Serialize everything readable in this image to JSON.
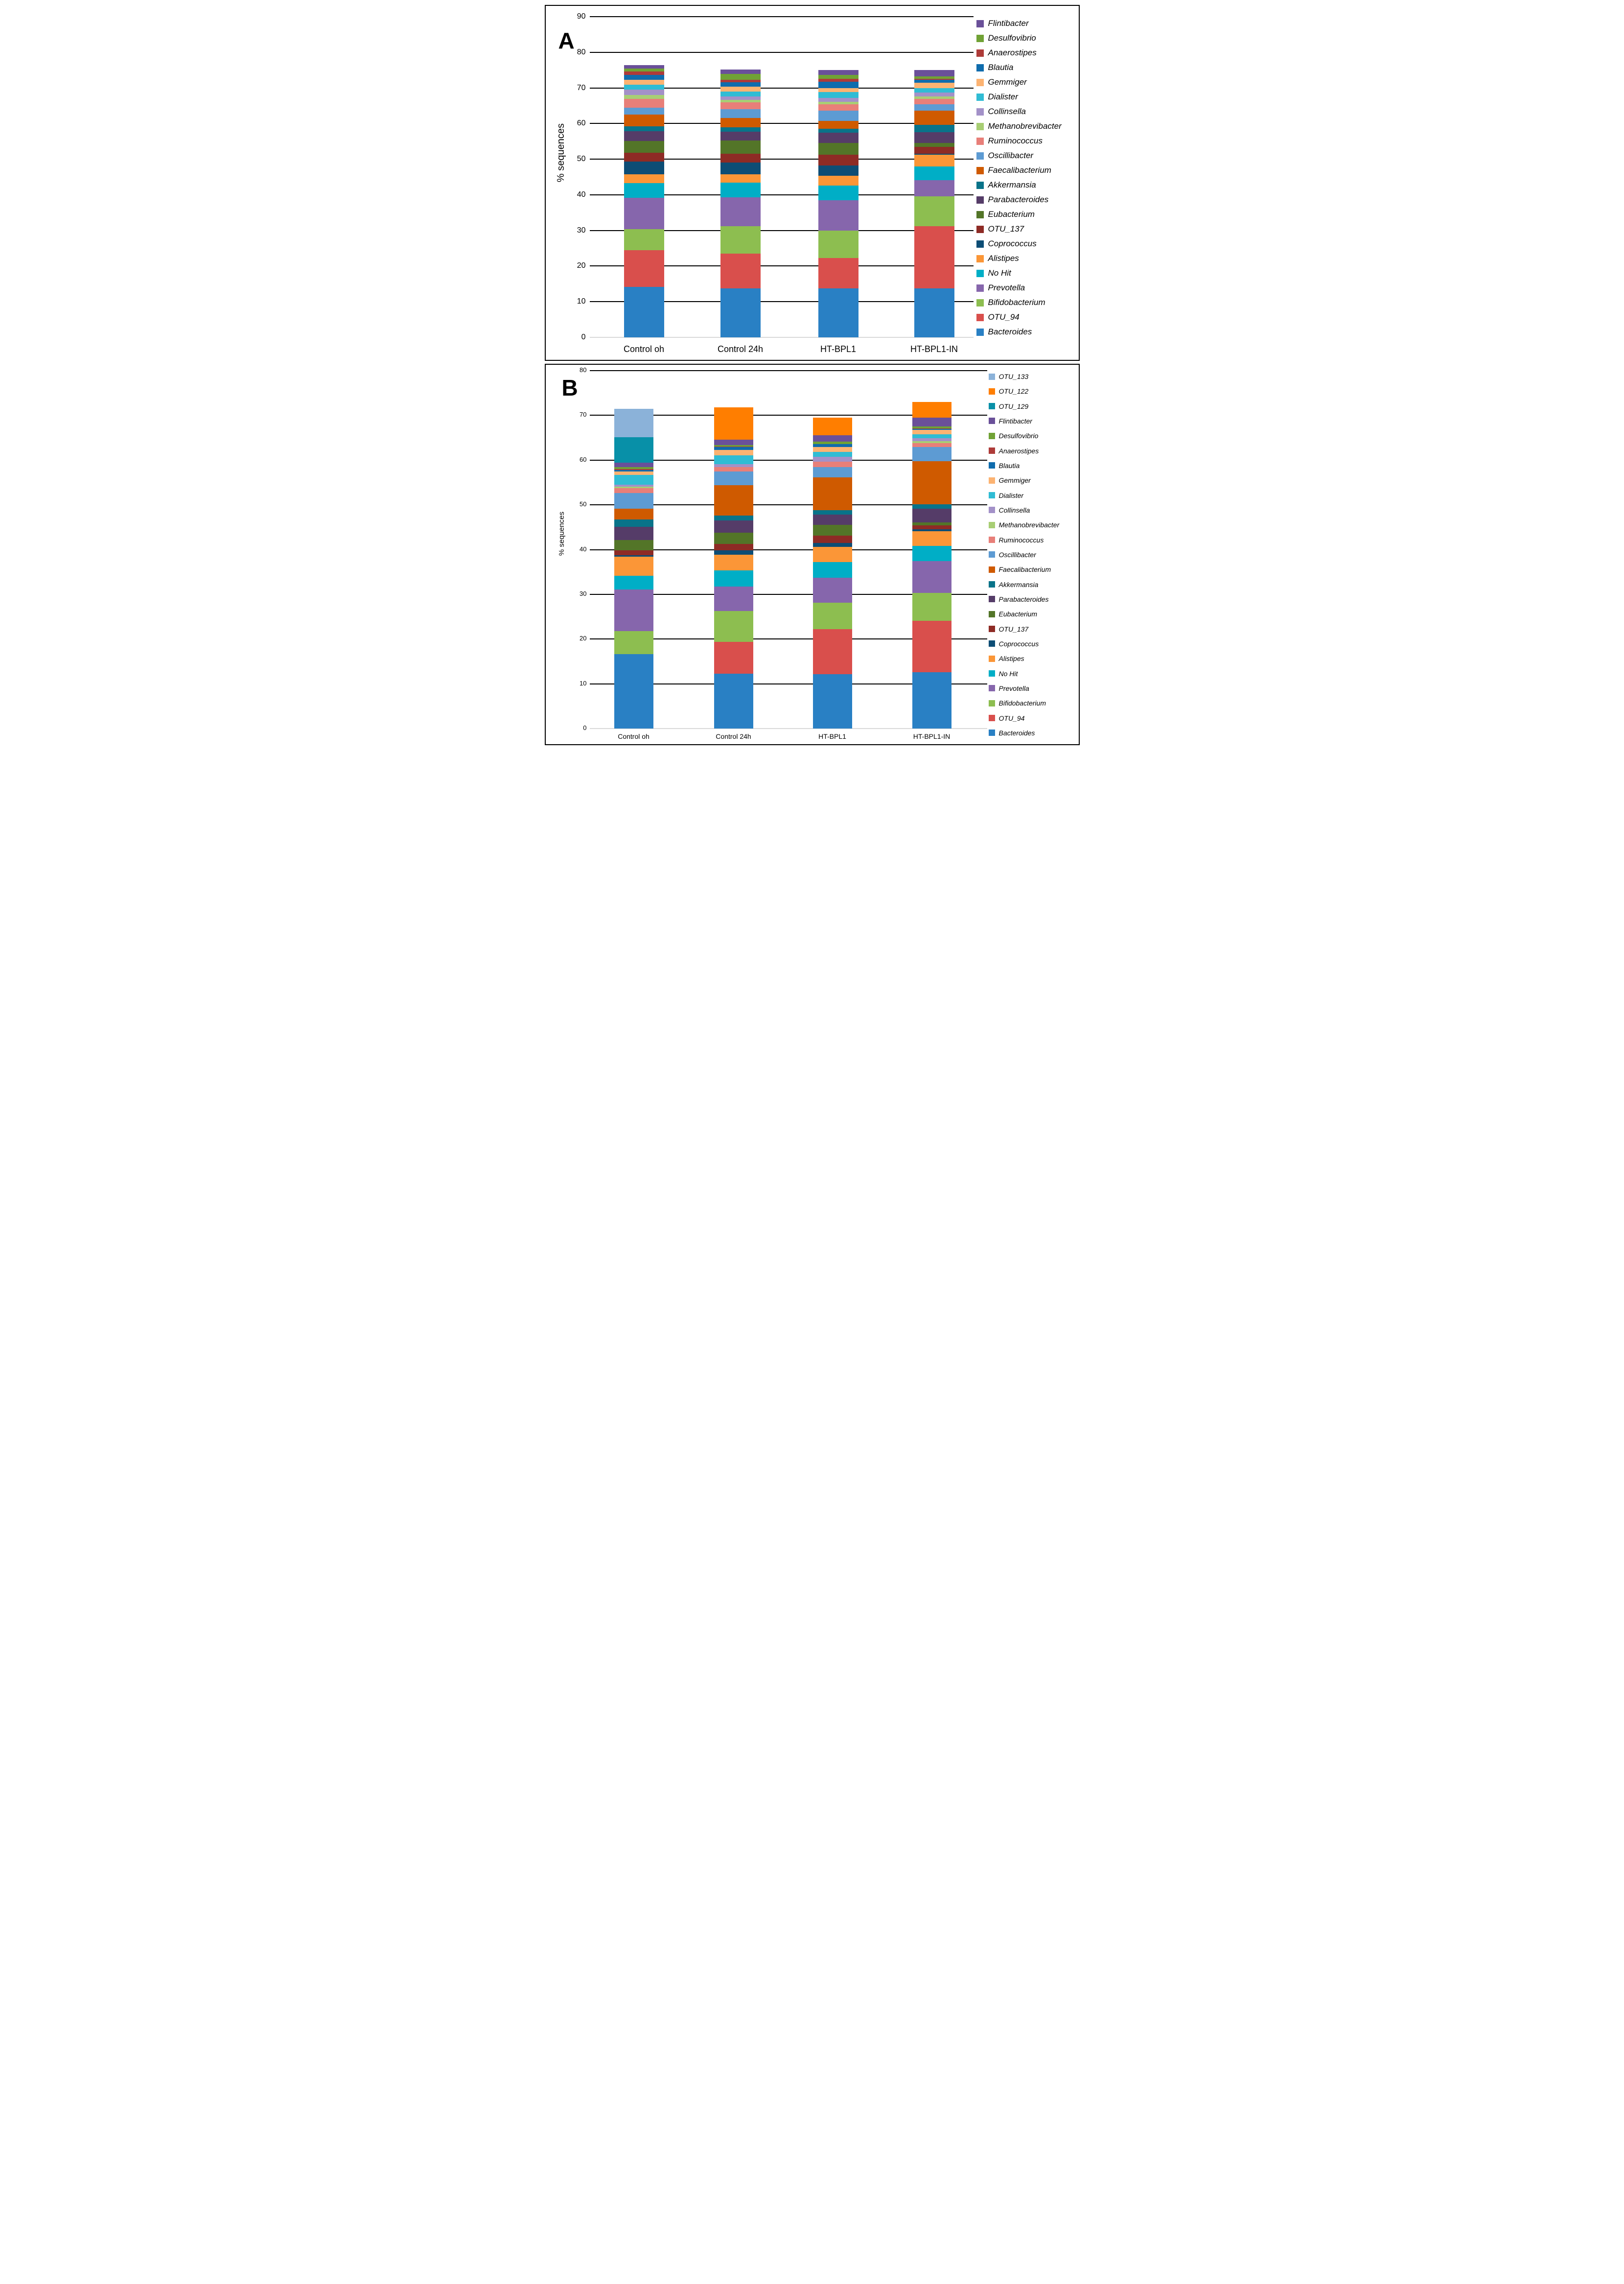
{
  "chart_data": [
    {
      "id": "A",
      "type": "bar",
      "subtype": "stacked-vertical",
      "panel_label": "A",
      "ylabel": "% sequences",
      "xlabel": "",
      "ylim": [
        0,
        90
      ],
      "ytick_step": 10,
      "grid": true,
      "legend_position": "right",
      "legend_order": "top-to-bottom-reverse-of-stack",
      "categories": [
        "Control oh",
        "Control 24h",
        "HT-BPL1",
        "HT-BPL1-IN"
      ],
      "series": [
        {
          "name": "Bacteroides",
          "color": "#2980C4",
          "values": [
            14.2,
            13.7,
            13.7,
            13.7
          ]
        },
        {
          "name": "OTU_94",
          "color": "#D94F4C",
          "values": [
            10.2,
            9.8,
            8.5,
            17.5
          ]
        },
        {
          "name": "Bifidobacterium",
          "color": "#8DBE50",
          "values": [
            6.0,
            7.7,
            7.8,
            8.4
          ]
        },
        {
          "name": "Prevotella",
          "color": "#8666AC",
          "values": [
            8.8,
            8.1,
            8.5,
            4.5
          ]
        },
        {
          "name": "No Hit",
          "color": "#00AEC6",
          "values": [
            4.1,
            4.1,
            4.1,
            3.8
          ]
        },
        {
          "name": "Alistipes",
          "color": "#FB9637",
          "values": [
            2.5,
            2.3,
            2.7,
            3.4
          ]
        },
        {
          "name": "Coprococcus",
          "color": "#0D4D75",
          "values": [
            3.5,
            3.3,
            3.0,
            0.3
          ]
        },
        {
          "name": "OTU_137",
          "color": "#8E2B25",
          "values": [
            2.5,
            2.5,
            3.0,
            1.9
          ]
        },
        {
          "name": "Eubacterium",
          "color": "#537528",
          "values": [
            3.3,
            3.7,
            3.3,
            1.1
          ]
        },
        {
          "name": "Parabacteroides",
          "color": "#553C68",
          "values": [
            2.7,
            2.5,
            2.8,
            3.0
          ]
        },
        {
          "name": "Akkermansia",
          "color": "#097389",
          "values": [
            1.5,
            1.3,
            1.1,
            2.1
          ]
        },
        {
          "name": "Faecalibacterium",
          "color": "#CF5A00",
          "values": [
            3.2,
            2.5,
            2.3,
            3.9
          ]
        },
        {
          "name": "Oscillibacter",
          "color": "#5D9BD3",
          "values": [
            1.9,
            2.5,
            2.8,
            1.8
          ]
        },
        {
          "name": "Ruminococcus",
          "color": "#E87F79",
          "values": [
            2.5,
            1.9,
            1.8,
            1.5
          ]
        },
        {
          "name": "Methanobrevibacter",
          "color": "#A8CE74",
          "values": [
            1.1,
            0.8,
            0.7,
            0.7
          ]
        },
        {
          "name": "Collinsella",
          "color": "#A391C8",
          "values": [
            1.5,
            0.9,
            1.1,
            1.1
          ]
        },
        {
          "name": "Dialister",
          "color": "#30BCD4",
          "values": [
            1.4,
            1.4,
            1.7,
            1.3
          ]
        },
        {
          "name": "Gemmiger",
          "color": "#FCB372",
          "values": [
            1.4,
            1.3,
            1.1,
            1.5
          ]
        },
        {
          "name": "Blautia",
          "color": "#0F6CAD",
          "values": [
            1.3,
            1.3,
            1.7,
            0.8
          ]
        },
        {
          "name": "Anaerostipes",
          "color": "#AE3B39",
          "values": [
            1.0,
            0.7,
            0.9,
            0.3
          ]
        },
        {
          "name": "Desulfovibrio",
          "color": "#70A235",
          "values": [
            0.8,
            1.7,
            1.1,
            0.6
          ]
        },
        {
          "name": "Flintibacter",
          "color": "#6A5099",
          "values": [
            1.0,
            1.2,
            1.4,
            1.8
          ]
        }
      ]
    },
    {
      "id": "B",
      "type": "bar",
      "subtype": "stacked-vertical",
      "panel_label": "B",
      "ylabel": "% sequences",
      "xlabel": "",
      "ylim": [
        0,
        80
      ],
      "ytick_step": 10,
      "grid": true,
      "legend_position": "right",
      "legend_order": "top-to-bottom-reverse-of-stack",
      "categories": [
        "Control oh",
        "Control 24h",
        "HT-BPL1",
        "HT-BPL1-IN"
      ],
      "series": [
        {
          "name": "Bacteroides",
          "color": "#2980C4",
          "values": [
            16.6,
            12.3,
            12.2,
            12.6
          ]
        },
        {
          "name": "OTU_94",
          "color": "#D94F4C",
          "values": [
            0,
            7.1,
            10.0,
            11.5
          ]
        },
        {
          "name": "Bifidobacterium",
          "color": "#8DBE50",
          "values": [
            5.2,
            6.9,
            5.9,
            6.2
          ]
        },
        {
          "name": "Prevotella",
          "color": "#8666AC",
          "values": [
            9.3,
            5.4,
            5.6,
            7.1
          ]
        },
        {
          "name": "No Hit",
          "color": "#00AEC6",
          "values": [
            3.1,
            3.6,
            3.5,
            3.4
          ]
        },
        {
          "name": "Alistipes",
          "color": "#FB9637",
          "values": [
            4.2,
            3.6,
            3.4,
            3.3
          ]
        },
        {
          "name": "Coprococcus",
          "color": "#0D4D75",
          "values": [
            0.4,
            0.9,
            0.9,
            0.5
          ]
        },
        {
          "name": "OTU_137",
          "color": "#8E2B25",
          "values": [
            1.0,
            1.5,
            1.6,
            0.8
          ]
        },
        {
          "name": "Eubacterium",
          "color": "#537528",
          "values": [
            2.3,
            2.5,
            2.4,
            0.7
          ]
        },
        {
          "name": "Parabacteroides",
          "color": "#553C68",
          "values": [
            3.0,
            2.7,
            2.3,
            3.1
          ]
        },
        {
          "name": "Akkermansia",
          "color": "#097389",
          "values": [
            1.6,
            1.1,
            1.0,
            0.9
          ]
        },
        {
          "name": "Faecalibacterium",
          "color": "#CF5A00",
          "values": [
            2.5,
            6.8,
            7.4,
            9.7
          ]
        },
        {
          "name": "Oscillibacter",
          "color": "#5D9BD3",
          "values": [
            3.4,
            3.1,
            2.3,
            3.1
          ]
        },
        {
          "name": "Ruminococcus",
          "color": "#E87F79",
          "values": [
            1.2,
            1.0,
            1.2,
            0.9
          ]
        },
        {
          "name": "Methanobrevibacter",
          "color": "#A8CE74",
          "values": [
            0.3,
            0,
            0,
            0.4
          ]
        },
        {
          "name": "Collinsella",
          "color": "#A391C8",
          "values": [
            0.4,
            0.6,
            1.0,
            0.7
          ]
        },
        {
          "name": "Dialister",
          "color": "#30BCD4",
          "values": [
            2.2,
            2.0,
            1.2,
            0.9
          ]
        },
        {
          "name": "Gemmiger",
          "color": "#FCB372",
          "values": [
            0.8,
            1.2,
            1.0,
            1.0
          ]
        },
        {
          "name": "Blautia",
          "color": "#0F6CAD",
          "values": [
            0.35,
            0.6,
            0.65,
            0.2
          ]
        },
        {
          "name": "Anaerostipes",
          "color": "#AE3B39",
          "values": [
            0.15,
            0.2,
            0.1,
            0.1
          ]
        },
        {
          "name": "Desulfovibrio",
          "color": "#70A235",
          "values": [
            0.5,
            0.3,
            0.5,
            0.4
          ]
        },
        {
          "name": "Flintibacter",
          "color": "#6A5099",
          "values": [
            1.0,
            1.2,
            1.4,
            2.0
          ]
        },
        {
          "name": "OTU_129",
          "color": "#0890A8",
          "values": [
            5.6,
            0,
            0,
            0
          ]
        },
        {
          "name": "OTU_122",
          "color": "#FF7E00",
          "values": [
            0,
            7.2,
            4.0,
            3.5
          ]
        },
        {
          "name": "OTU_133",
          "color": "#8BB2D9",
          "values": [
            6.4,
            0,
            0,
            0
          ]
        }
      ]
    }
  ]
}
